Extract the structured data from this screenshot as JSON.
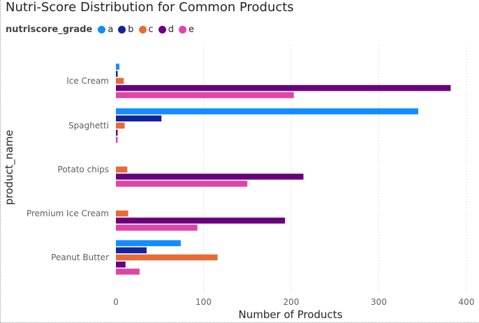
{
  "chart_data": {
    "type": "bar",
    "orientation": "horizontal",
    "title": "Nutri-Score Distribution for Common Products",
    "legend_title": "nutriscore_grade",
    "legend_position": "top-left",
    "xlabel": "Number of Products",
    "ylabel": "product_name",
    "xlim": [
      0,
      400
    ],
    "xticks": [
      0,
      100,
      200,
      300,
      400
    ],
    "grid": "vertical-dotted",
    "categories": [
      "Ice Cream",
      "Spaghetti",
      "Potato chips",
      "Premium Ice Cream",
      "Peanut Butter"
    ],
    "series": [
      {
        "name": "a",
        "color": "#118DFF",
        "values": [
          4,
          345,
          0,
          0,
          74
        ]
      },
      {
        "name": "b",
        "color": "#12239E",
        "values": [
          2,
          52,
          0,
          0,
          35
        ]
      },
      {
        "name": "c",
        "color": "#E66C37",
        "values": [
          9,
          10,
          13,
          14,
          116
        ]
      },
      {
        "name": "d",
        "color": "#6B007B",
        "values": [
          382,
          2,
          214,
          193,
          11
        ]
      },
      {
        "name": "e",
        "color": "#E044A7",
        "values": [
          203,
          2,
          150,
          93,
          27
        ]
      }
    ]
  }
}
